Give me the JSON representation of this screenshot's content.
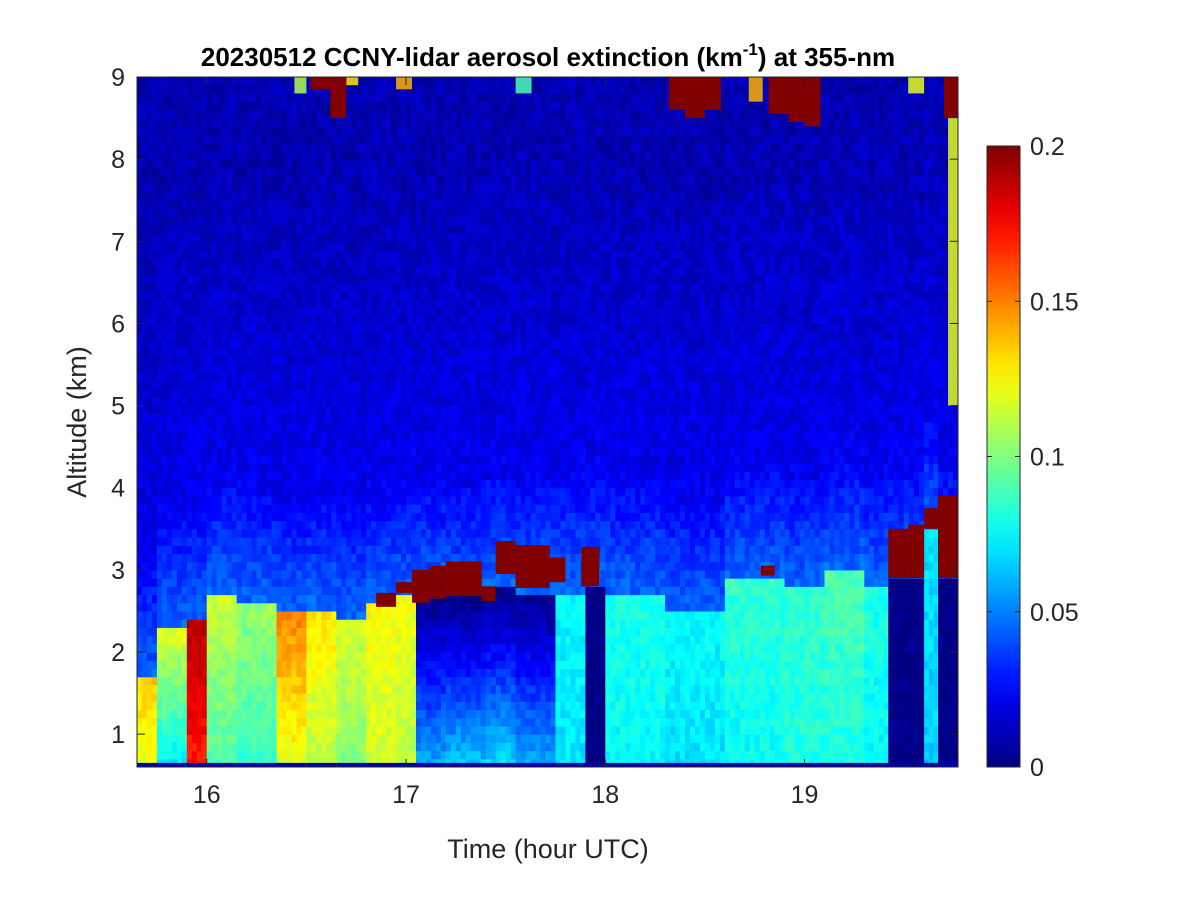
{
  "chart_data": {
    "type": "heatmap",
    "title": {
      "prefix": "20230512 CCNY-lidar aerosol extinction (km",
      "superscript": "-1",
      "suffix": ") at 355-nm"
    },
    "xlabel": "Time (hour UTC)",
    "ylabel": "Altitude (km)",
    "xlim": [
      15.65,
      19.77
    ],
    "ylim": [
      0.6,
      9
    ],
    "x_ticks": [
      16,
      17,
      18,
      19
    ],
    "x_tick_labels": [
      "16",
      "17",
      "18",
      "19"
    ],
    "y_ticks": [
      1,
      2,
      3,
      4,
      5,
      6,
      7,
      8,
      9
    ],
    "y_tick_labels": [
      "1",
      "2",
      "3",
      "4",
      "5",
      "6",
      "7",
      "8",
      "9"
    ],
    "colorbar": {
      "colormap": "jet",
      "clim": [
        0,
        0.2
      ],
      "ticks": [
        0,
        0.05,
        0.1,
        0.15,
        0.2
      ],
      "tick_labels": [
        "0",
        "0.05",
        "0.1",
        "0.15",
        "0.2"
      ]
    },
    "time_columns": [
      {
        "t0": 15.65,
        "t1": 15.75,
        "top": 1.7,
        "low": 0.12,
        "low2": 0.135
      },
      {
        "t0": 15.75,
        "t1": 15.9,
        "top": 2.3,
        "low": 0.07,
        "low2": 0.12
      },
      {
        "t0": 15.9,
        "t1": 16.0,
        "top": 2.4,
        "low": 0.17,
        "low2": 0.19
      },
      {
        "t0": 16.0,
        "t1": 16.15,
        "top": 2.7,
        "low": 0.09,
        "low2": 0.115
      },
      {
        "t0": 16.15,
        "t1": 16.35,
        "top": 2.6,
        "low": 0.085,
        "low2": 0.105
      },
      {
        "t0": 16.35,
        "t1": 16.5,
        "top": 2.5,
        "low": 0.12,
        "low2": 0.15
      },
      {
        "t0": 16.5,
        "t1": 16.65,
        "top": 2.55,
        "low": 0.11,
        "low2": 0.13
      },
      {
        "t0": 16.65,
        "t1": 16.8,
        "top": 2.4,
        "low": 0.1,
        "low2": 0.118
      },
      {
        "t0": 16.8,
        "t1": 16.95,
        "top": 2.6,
        "low": 0.115,
        "low2": 0.125
      },
      {
        "t0": 16.95,
        "t1": 17.05,
        "top": 2.7,
        "low": 0.11,
        "low2": 0.122
      },
      {
        "t0": 17.05,
        "t1": 17.2,
        "top": 2.7,
        "low": 0.06,
        "low2": 0.0
      },
      {
        "t0": 17.2,
        "t1": 17.4,
        "top": 2.7,
        "low": 0.065,
        "low2": 0.0
      },
      {
        "t0": 17.4,
        "t1": 17.55,
        "top": 2.8,
        "low": 0.07,
        "low2": 0.0
      },
      {
        "t0": 17.55,
        "t1": 17.75,
        "top": 2.75,
        "low": 0.06,
        "low2": 0.0
      },
      {
        "t0": 17.75,
        "t1": 17.9,
        "top": 2.75,
        "low": 0.07,
        "low2": 0.075
      },
      {
        "t0": 17.9,
        "t1": 18.0,
        "top": 2.8,
        "low": 0.0,
        "low2": 0.0
      },
      {
        "t0": 18.0,
        "t1": 18.3,
        "top": 2.7,
        "low": 0.075,
        "low2": 0.08
      },
      {
        "t0": 18.3,
        "t1": 18.6,
        "top": 2.5,
        "low": 0.07,
        "low2": 0.075
      },
      {
        "t0": 18.6,
        "t1": 18.9,
        "top": 2.9,
        "low": 0.075,
        "low2": 0.085
      },
      {
        "t0": 18.9,
        "t1": 19.1,
        "top": 2.8,
        "low": 0.08,
        "low2": 0.085
      },
      {
        "t0": 19.1,
        "t1": 19.3,
        "top": 3.0,
        "low": 0.08,
        "low2": 0.09
      },
      {
        "t0": 19.3,
        "t1": 19.42,
        "top": 2.8,
        "low": 0.075,
        "low2": 0.08
      },
      {
        "t0": 19.42,
        "t1": 19.6,
        "top": 2.9,
        "low": 0.0,
        "low2": 0.0
      },
      {
        "t0": 19.6,
        "t1": 19.67,
        "top": 3.5,
        "low": 0.065,
        "low2": 0.07
      },
      {
        "t0": 19.67,
        "t1": 19.77,
        "top": 2.9,
        "low": 0.0,
        "low2": 0.0
      }
    ],
    "saturated_patches": [
      {
        "t0": 16.85,
        "t1": 16.95,
        "z0": 2.55,
        "z1": 2.72
      },
      {
        "t0": 16.95,
        "t1": 17.03,
        "z0": 2.72,
        "z1": 2.85
      },
      {
        "t0": 17.03,
        "t1": 17.12,
        "z0": 2.6,
        "z1": 3.0
      },
      {
        "t0": 17.12,
        "t1": 17.2,
        "z0": 2.65,
        "z1": 3.05
      },
      {
        "t0": 17.2,
        "t1": 17.38,
        "z0": 2.68,
        "z1": 3.1
      },
      {
        "t0": 17.38,
        "t1": 17.45,
        "z0": 2.62,
        "z1": 2.8
      },
      {
        "t0": 17.45,
        "t1": 17.55,
        "z0": 2.95,
        "z1": 3.35
      },
      {
        "t0": 17.55,
        "t1": 17.72,
        "z0": 2.78,
        "z1": 3.3
      },
      {
        "t0": 17.72,
        "t1": 17.8,
        "z0": 2.85,
        "z1": 3.15
      },
      {
        "t0": 17.88,
        "t1": 17.97,
        "z0": 2.8,
        "z1": 3.28
      },
      {
        "t0": 18.78,
        "t1": 18.85,
        "z0": 2.93,
        "z1": 3.05
      },
      {
        "t0": 19.42,
        "t1": 19.52,
        "z0": 2.9,
        "z1": 3.5
      },
      {
        "t0": 19.52,
        "t1": 19.6,
        "z0": 2.9,
        "z1": 3.55
      },
      {
        "t0": 19.6,
        "t1": 19.67,
        "z0": 3.5,
        "z1": 3.75
      },
      {
        "t0": 19.67,
        "t1": 19.77,
        "z0": 2.9,
        "z1": 3.9
      },
      {
        "t0": 16.52,
        "t1": 16.62,
        "z0": 8.85,
        "z1": 9.0
      },
      {
        "t0": 16.62,
        "t1": 16.7,
        "z0": 8.5,
        "z1": 9.0
      },
      {
        "t0": 18.32,
        "t1": 18.4,
        "z0": 8.6,
        "z1": 9.0
      },
      {
        "t0": 18.4,
        "t1": 18.5,
        "z0": 8.5,
        "z1": 9.0
      },
      {
        "t0": 18.5,
        "t1": 18.58,
        "z0": 8.6,
        "z1": 9.0
      },
      {
        "t0": 18.82,
        "t1": 18.92,
        "z0": 8.55,
        "z1": 9.0
      },
      {
        "t0": 18.92,
        "t1": 19.0,
        "z0": 8.45,
        "z1": 9.0
      },
      {
        "t0": 19.0,
        "t1": 19.08,
        "z0": 8.4,
        "z1": 9.0
      },
      {
        "t0": 19.7,
        "t1": 19.77,
        "z0": 8.5,
        "z1": 9.0
      }
    ],
    "high_streaks": [
      {
        "t0": 16.44,
        "t1": 16.5,
        "z0": 8.8,
        "z1": 9.0,
        "v": 0.11
      },
      {
        "t0": 16.7,
        "t1": 16.76,
        "z0": 8.9,
        "z1": 9.0,
        "v": 0.13
      },
      {
        "t0": 16.95,
        "t1": 17.03,
        "z0": 8.85,
        "z1": 9.0,
        "v": 0.14
      },
      {
        "t0": 17.55,
        "t1": 17.63,
        "z0": 8.8,
        "z1": 9.0,
        "v": 0.09
      },
      {
        "t0": 18.72,
        "t1": 18.79,
        "z0": 8.7,
        "z1": 9.0,
        "v": 0.14
      },
      {
        "t0": 19.52,
        "t1": 19.6,
        "z0": 8.8,
        "z1": 9.0,
        "v": 0.12
      },
      {
        "t0": 19.72,
        "t1": 19.77,
        "z0": 5.0,
        "z1": 8.5,
        "v": 0.12
      }
    ]
  }
}
